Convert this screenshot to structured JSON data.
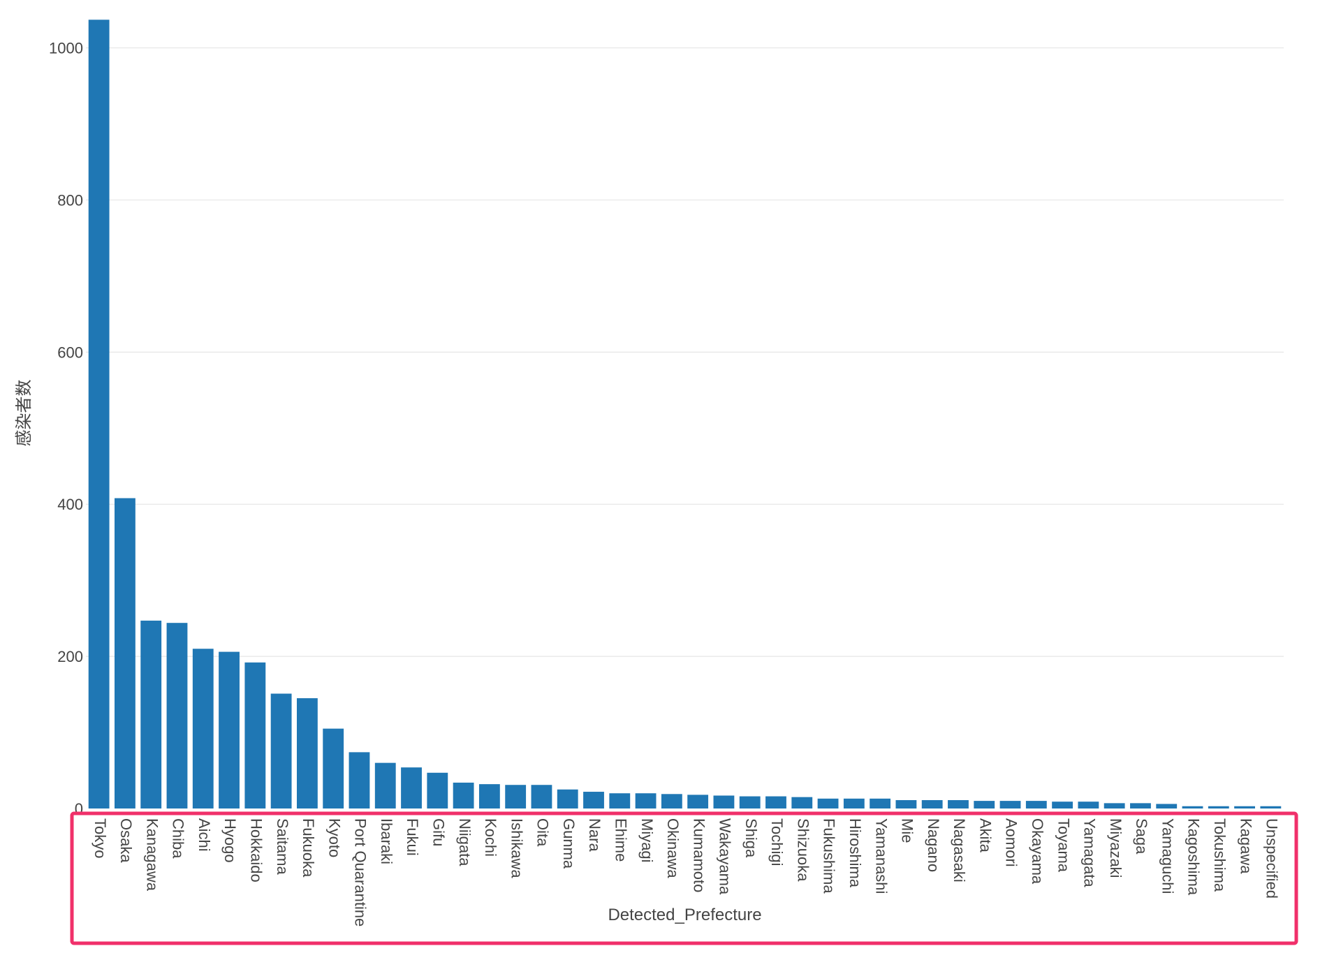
{
  "chart_data": {
    "type": "bar",
    "xlabel": "Detected_Prefecture",
    "ylabel": "感染者数",
    "ylim": [
      0,
      1040
    ],
    "yticks": [
      0,
      200,
      400,
      600,
      800,
      1000
    ],
    "grid": true,
    "color": "#1f77b4",
    "highlight_box_color": "#f0306a",
    "categories": [
      "Tokyo",
      "Osaka",
      "Kanagawa",
      "Chiba",
      "Aichi",
      "Hyogo",
      "Hokkaido",
      "Saitama",
      "Fukuoka",
      "Kyoto",
      "Port Quarantine",
      "Ibaraki",
      "Fukui",
      "Gifu",
      "Niigata",
      "Kochi",
      "Ishikawa",
      "Oita",
      "Gunma",
      "Nara",
      "Ehime",
      "Miyagi",
      "Okinawa",
      "Kumamoto",
      "Wakayama",
      "Shiga",
      "Tochigi",
      "Shizuoka",
      "Fukushima",
      "Hiroshima",
      "Yamanashi",
      "Mie",
      "Nagano",
      "Nagasaki",
      "Akita",
      "Aomori",
      "Okayama",
      "Toyama",
      "Yamagata",
      "Miyazaki",
      "Saga",
      "Yamaguchi",
      "Kagoshima",
      "Tokushima",
      "Kagawa",
      "Unspecified"
    ],
    "values": [
      1037,
      408,
      247,
      244,
      210,
      206,
      192,
      151,
      145,
      105,
      74,
      60,
      54,
      47,
      34,
      32,
      31,
      31,
      25,
      22,
      20,
      20,
      19,
      18,
      17,
      16,
      16,
      15,
      13,
      13,
      13,
      11,
      11,
      11,
      10,
      10,
      10,
      9,
      9,
      7,
      7,
      6,
      3,
      3,
      3,
      3
    ]
  }
}
